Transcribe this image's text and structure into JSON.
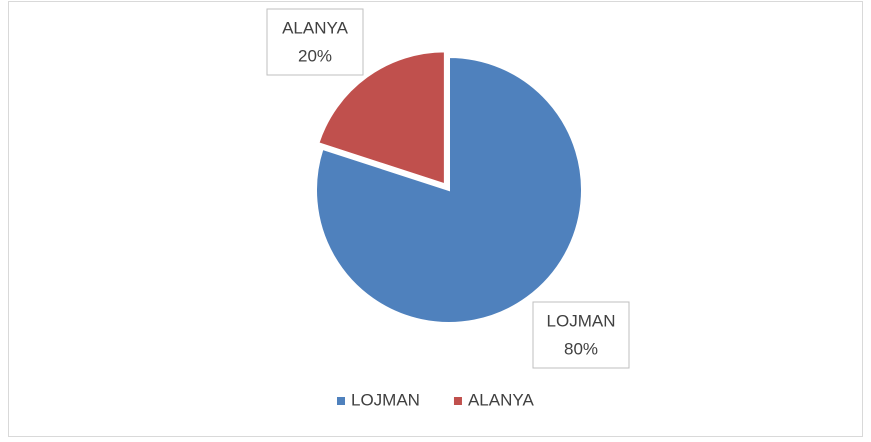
{
  "chart_data": {
    "type": "pie",
    "categories": [
      "LOJMAN",
      "ALANYA"
    ],
    "values": [
      80,
      20
    ],
    "value_labels": [
      "80%",
      "20%"
    ],
    "colors": [
      "#4f81bd",
      "#c0504d"
    ],
    "exploded": [
      false,
      true
    ],
    "legend": "bottom"
  }
}
